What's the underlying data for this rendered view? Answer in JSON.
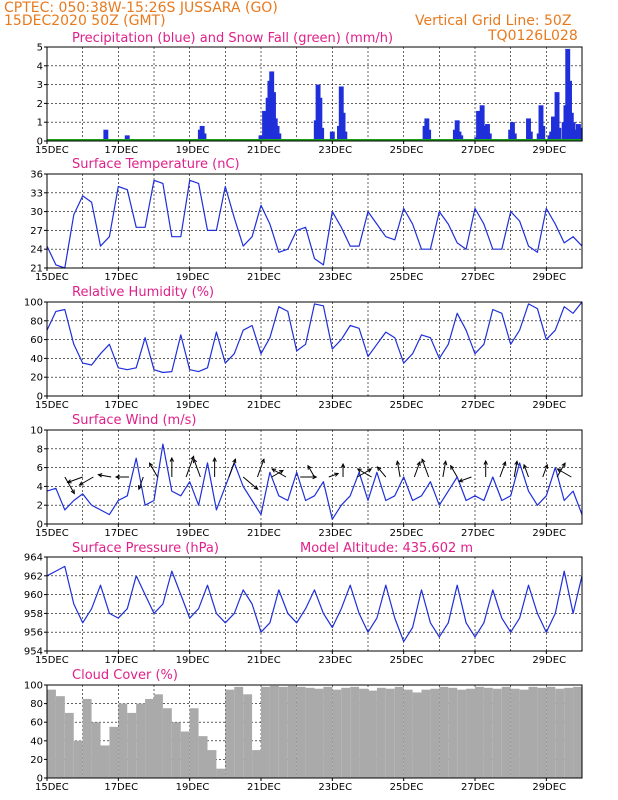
{
  "header": {
    "line1": "CPTEC:   050:38W-15:26S   JUSSARA (GO)",
    "line2": "15DEC2020 50Z (GMT)",
    "grid_line": "Vertical Grid Line: 50Z",
    "code": "TQ0126L028"
  },
  "colors": {
    "header": "#e87a1e",
    "title": "#e0208a",
    "line": "#1f2fd9",
    "precip": "#1f2fd9",
    "snow": "#1aa01a",
    "cloud": "#aaaaaa"
  },
  "x_tick_labels": [
    "15DEC",
    "17DEC",
    "19DEC",
    "21DEC",
    "23DEC",
    "25DEC",
    "27DEC",
    "29DEC"
  ],
  "x_tick_days": [
    0,
    2,
    4,
    6,
    8,
    10,
    12,
    14
  ],
  "chart_data": [
    {
      "id": "precip",
      "type": "bar",
      "title": "Precipitation (blue) and Snow Fall (green) (mm/h)",
      "ylim": [
        0,
        5
      ],
      "yticks": [
        0,
        1,
        2,
        3,
        4,
        5
      ],
      "xlim": [
        0,
        15
      ],
      "series": [
        {
          "key": "rain",
          "x": [
            1.65,
            2.25,
            4.3,
            4.35,
            4.4,
            6.0,
            6.1,
            6.2,
            6.25,
            6.3,
            6.35,
            6.4,
            6.45,
            6.5,
            7.55,
            7.6,
            7.65,
            7.7,
            8.0,
            8.2,
            8.25,
            8.3,
            8.35,
            10.6,
            10.65,
            10.7,
            11.45,
            11.5,
            11.55,
            11.6,
            12.05,
            12.1,
            12.15,
            12.2,
            12.25,
            12.3,
            12.35,
            12.4,
            13.0,
            13.05,
            13.1,
            13.5,
            13.55,
            13.8,
            13.85,
            13.9,
            14.1,
            14.15,
            14.2,
            14.25,
            14.3,
            14.35,
            14.5,
            14.55,
            14.6,
            14.65,
            14.7,
            14.75,
            14.8,
            14.85,
            14.9,
            14.95
          ],
          "values": [
            0.6,
            0.3,
            0.6,
            0.8,
            0.4,
            0.3,
            1.6,
            2.3,
            3.2,
            3.7,
            2.6,
            1.2,
            0.8,
            0.4,
            1.1,
            3.0,
            2.3,
            0.7,
            0.5,
            0.8,
            2.9,
            1.5,
            0.5,
            0.8,
            1.2,
            0.6,
            0.6,
            1.1,
            0.5,
            0.3,
            0.2,
            1.6,
            0.6,
            1.9,
            0.8,
            0.6,
            0.9,
            0.4,
            0.6,
            1.0,
            0.4,
            1.2,
            0.5,
            0.4,
            1.9,
            0.8,
            0.3,
            0.5,
            1.3,
            0.9,
            2.6,
            0.7,
            1.0,
            1.9,
            4.9,
            3.2,
            1.5,
            1.0,
            0.6,
            0.5,
            0.9,
            0.7
          ]
        },
        {
          "key": "snow",
          "x": [],
          "values": []
        }
      ]
    },
    {
      "id": "temp",
      "type": "line",
      "title": "Surface Temperature (nC)",
      "ylim": [
        21,
        36
      ],
      "yticks": [
        21,
        24,
        27,
        30,
        33,
        36
      ],
      "xlim": [
        0,
        15
      ],
      "x": [
        0,
        0.25,
        0.5,
        0.75,
        1,
        1.25,
        1.5,
        1.75,
        2,
        2.25,
        2.5,
        2.75,
        3,
        3.25,
        3.5,
        3.75,
        4,
        4.25,
        4.5,
        4.75,
        5,
        5.25,
        5.5,
        5.75,
        6,
        6.25,
        6.5,
        6.75,
        7,
        7.25,
        7.5,
        7.75,
        8,
        8.25,
        8.5,
        8.75,
        9,
        9.25,
        9.5,
        9.75,
        10,
        10.25,
        10.5,
        10.75,
        11,
        11.25,
        11.5,
        11.75,
        12,
        12.25,
        12.5,
        12.75,
        13,
        13.25,
        13.5,
        13.75,
        14,
        14.25,
        14.5,
        14.75,
        15
      ],
      "values": [
        24.5,
        21.5,
        21,
        29.5,
        32.5,
        31.5,
        24.5,
        26,
        34,
        33.5,
        27.5,
        27.5,
        35,
        34.5,
        26,
        26,
        35,
        34.5,
        27,
        27,
        34,
        29,
        24.5,
        26,
        31,
        28,
        23.5,
        24,
        27,
        27.5,
        22.5,
        21.5,
        30,
        27.5,
        24.5,
        24.5,
        30,
        28,
        26,
        25.5,
        30.5,
        28,
        24,
        24,
        30,
        28,
        25,
        24,
        30.5,
        28,
        24,
        24,
        30,
        28.5,
        24.5,
        23.5,
        30.5,
        28,
        25,
        26,
        24.5
      ]
    },
    {
      "id": "rh",
      "type": "line",
      "title": "Relative Humidity (%)",
      "ylim": [
        0,
        100
      ],
      "yticks": [
        0,
        20,
        40,
        60,
        80,
        100
      ],
      "xlim": [
        0,
        15
      ],
      "x": [
        0,
        0.25,
        0.5,
        0.75,
        1,
        1.25,
        1.5,
        1.75,
        2,
        2.25,
        2.5,
        2.75,
        3,
        3.25,
        3.5,
        3.75,
        4,
        4.25,
        4.5,
        4.75,
        5,
        5.25,
        5.5,
        5.75,
        6,
        6.25,
        6.5,
        6.75,
        7,
        7.25,
        7.5,
        7.75,
        8,
        8.25,
        8.5,
        8.75,
        9,
        9.25,
        9.5,
        9.75,
        10,
        10.25,
        10.5,
        10.75,
        11,
        11.25,
        11.5,
        11.75,
        12,
        12.25,
        12.5,
        12.75,
        13,
        13.25,
        13.5,
        13.75,
        14,
        14.25,
        14.5,
        14.75,
        15
      ],
      "values": [
        70,
        90,
        92,
        55,
        35,
        33,
        45,
        55,
        30,
        28,
        30,
        62,
        28,
        25,
        26,
        65,
        28,
        26,
        30,
        68,
        35,
        45,
        70,
        75,
        45,
        62,
        95,
        90,
        48,
        55,
        98,
        96,
        50,
        60,
        75,
        72,
        42,
        55,
        68,
        62,
        35,
        45,
        65,
        62,
        40,
        55,
        88,
        70,
        45,
        55,
        92,
        88,
        55,
        70,
        98,
        93,
        60,
        70,
        95,
        88,
        100
      ]
    },
    {
      "id": "wind",
      "type": "line",
      "title": "Surface Wind (m/s)",
      "ylim": [
        0,
        10
      ],
      "yticks": [
        0,
        2,
        4,
        6,
        8,
        10
      ],
      "xlim": [
        0,
        15
      ],
      "x": [
        0,
        0.25,
        0.5,
        0.75,
        1,
        1.25,
        1.5,
        1.75,
        2,
        2.25,
        2.5,
        2.75,
        3,
        3.25,
        3.5,
        3.75,
        4,
        4.25,
        4.5,
        4.75,
        5,
        5.25,
        5.5,
        5.75,
        6,
        6.25,
        6.5,
        6.75,
        7,
        7.25,
        7.5,
        7.75,
        8,
        8.25,
        8.5,
        8.75,
        9,
        9.25,
        9.5,
        9.75,
        10,
        10.25,
        10.5,
        10.75,
        11,
        11.25,
        11.5,
        11.75,
        12,
        12.25,
        12.5,
        12.75,
        13,
        13.25,
        13.5,
        13.75,
        14,
        14.25,
        14.5,
        14.75,
        15
      ],
      "values": [
        3.5,
        3.8,
        1.5,
        2.5,
        3.2,
        2.0,
        1.5,
        1.0,
        2.5,
        3.0,
        7.0,
        2.0,
        2.5,
        8.5,
        3.5,
        3.0,
        4.5,
        2.0,
        6.5,
        1.5,
        4.0,
        6.5,
        4.0,
        2.5,
        1.0,
        5.5,
        3.0,
        2.5,
        5.5,
        2.5,
        3.0,
        4.5,
        0.5,
        2.0,
        3.0,
        5.5,
        2.5,
        5.5,
        2.5,
        3.0,
        5.0,
        2.5,
        3.0,
        4.5,
        2.0,
        3.5,
        5.0,
        2.5,
        3.0,
        2.5,
        5.0,
        2.5,
        3.0,
        6.5,
        3.5,
        2.0,
        3.0,
        6.0,
        2.5,
        3.5,
        1.0
      ],
      "arrows": {
        "x": [
          0.5,
          1.0,
          1.3,
          1.8,
          2.3,
          2.7,
          3.1,
          3.5,
          3.9,
          4.3,
          4.7,
          5.1,
          5.5,
          5.9,
          6.3,
          6.7,
          7.1,
          7.5,
          7.9,
          8.3,
          8.7,
          9.1,
          9.5,
          9.9,
          10.3,
          10.7,
          11.1,
          11.5,
          11.9,
          12.3,
          12.7,
          13.1,
          13.5,
          13.9,
          14.3,
          14.7
        ],
        "speed": [
          5,
          4,
          4,
          3,
          3,
          3,
          4,
          5,
          6,
          5,
          5,
          5,
          5,
          5,
          3,
          4,
          4,
          3,
          2,
          3,
          4,
          4,
          3,
          4,
          4,
          5,
          4,
          3,
          3,
          4,
          4,
          4,
          3,
          3,
          4,
          4
        ],
        "direction": [
          150,
          250,
          240,
          280,
          270,
          200,
          330,
          0,
          20,
          340,
          0,
          20,
          130,
          20,
          60,
          300,
          90,
          330,
          70,
          0,
          60,
          300,
          320,
          350,
          20,
          340,
          10,
          330,
          250,
          0,
          20,
          10,
          340,
          20,
          30,
          300
        ]
      }
    },
    {
      "id": "press",
      "type": "line",
      "title": "Surface Pressure (hPa)",
      "annotation": "Model Altitude: 435.602 m",
      "ylim": [
        954,
        964
      ],
      "yticks": [
        954,
        956,
        958,
        960,
        962,
        964
      ],
      "xlim": [
        0,
        15
      ],
      "x": [
        0,
        0.25,
        0.5,
        0.75,
        1,
        1.25,
        1.5,
        1.75,
        2,
        2.25,
        2.5,
        2.75,
        3,
        3.25,
        3.5,
        3.75,
        4,
        4.25,
        4.5,
        4.75,
        5,
        5.25,
        5.5,
        5.75,
        6,
        6.25,
        6.5,
        6.75,
        7,
        7.25,
        7.5,
        7.75,
        8,
        8.25,
        8.5,
        8.75,
        9,
        9.25,
        9.5,
        9.75,
        10,
        10.25,
        10.5,
        10.75,
        11,
        11.25,
        11.5,
        11.75,
        12,
        12.25,
        12.5,
        12.75,
        13,
        13.25,
        13.5,
        13.75,
        14,
        14.25,
        14.5,
        14.75,
        15
      ],
      "values": [
        962,
        962.5,
        963,
        959,
        957,
        958.5,
        961,
        958,
        957.5,
        958.5,
        962,
        960,
        958,
        959,
        962.5,
        960,
        957.5,
        958.5,
        961,
        958,
        957,
        958,
        960.5,
        959,
        956,
        957,
        960.5,
        958,
        957,
        958.5,
        960.5,
        958,
        956.5,
        958.5,
        961,
        958,
        956,
        957.5,
        961,
        957.5,
        955,
        956.5,
        960.5,
        957,
        955.5,
        957,
        961,
        957,
        955.5,
        957,
        960.5,
        957.5,
        956,
        957.5,
        961,
        958,
        956,
        958,
        962.5,
        958,
        962
      ]
    },
    {
      "id": "cloud",
      "type": "area",
      "title": "Cloud Cover (%)",
      "ylim": [
        0,
        100
      ],
      "yticks": [
        0,
        20,
        40,
        60,
        80,
        100
      ],
      "xlim": [
        0,
        15
      ],
      "x": [
        0,
        0.25,
        0.5,
        0.75,
        1,
        1.25,
        1.5,
        1.75,
        2,
        2.25,
        2.5,
        2.75,
        3,
        3.25,
        3.5,
        3.75,
        4,
        4.25,
        4.5,
        4.75,
        5,
        5.25,
        5.5,
        5.75,
        6,
        6.25,
        6.5,
        6.75,
        7,
        7.25,
        7.5,
        7.75,
        8,
        8.25,
        8.5,
        8.75,
        9,
        9.25,
        9.5,
        9.75,
        10,
        10.25,
        10.5,
        10.75,
        11,
        11.25,
        11.5,
        11.75,
        12,
        12.25,
        12.5,
        12.75,
        13,
        13.25,
        13.5,
        13.75,
        14,
        14.25,
        14.5,
        14.75,
        15
      ],
      "values": [
        95,
        88,
        70,
        40,
        85,
        60,
        35,
        55,
        80,
        70,
        80,
        85,
        90,
        75,
        60,
        50,
        75,
        45,
        30,
        10,
        95,
        98,
        90,
        30,
        98,
        99,
        98,
        99,
        98,
        97,
        96,
        98,
        95,
        97,
        98,
        96,
        94,
        97,
        96,
        98,
        95,
        92,
        95,
        96,
        98,
        97,
        95,
        96,
        98,
        97,
        96,
        98,
        96,
        95,
        98,
        97,
        98,
        96,
        97,
        98,
        95
      ]
    }
  ]
}
